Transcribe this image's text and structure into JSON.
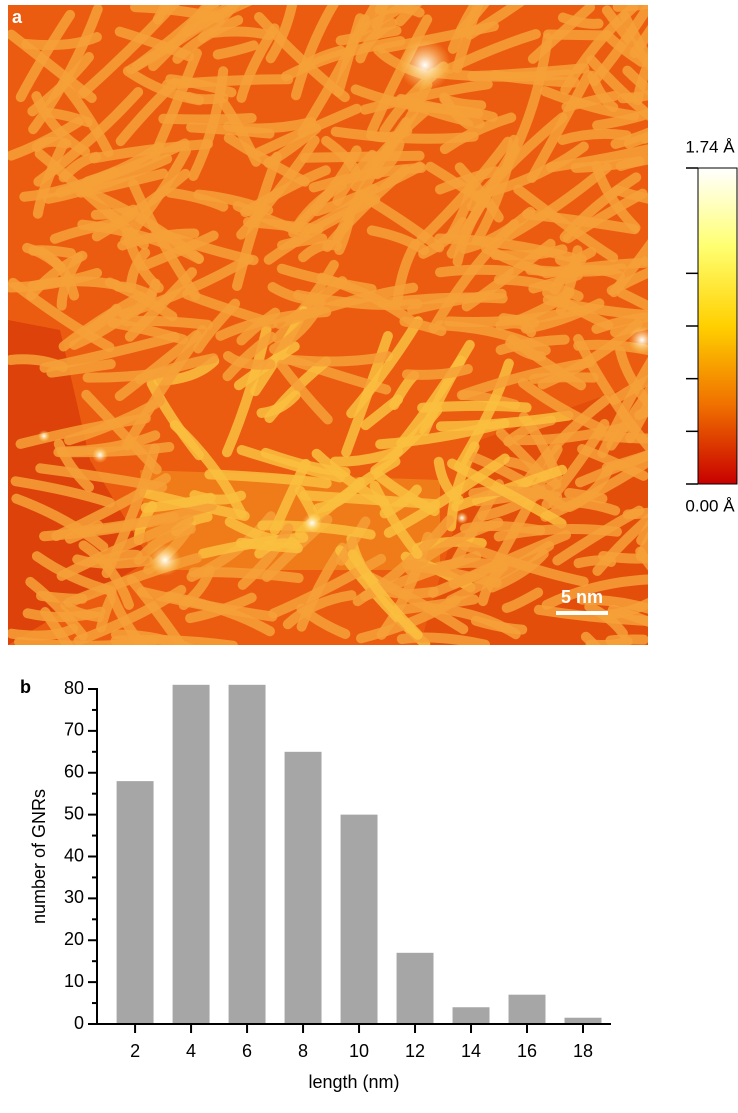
{
  "chart_data": [
    {
      "type": "image",
      "panel_label": "a",
      "scale_bar": "5 nm",
      "colorbar": {
        "clim": [
          0,
          1.74
        ],
        "ticks": [
          {
            "value": 0,
            "label": "0.00 Å"
          },
          {
            "value": 1.74,
            "label": "1.74 Å"
          }
        ],
        "minor_ticks": [
          0.29,
          0.58,
          0.87,
          1.16
        ],
        "colors": [
          "#c80000",
          "#f07000",
          "#ffd000",
          "#ffff70",
          "#ffffff"
        ]
      }
    },
    {
      "type": "bar",
      "panel_label": "b",
      "x": [
        2,
        4,
        6,
        8,
        10,
        12,
        14,
        16,
        18
      ],
      "values": [
        58,
        81,
        81,
        65,
        50,
        17,
        4,
        7,
        1.5
      ],
      "color": "#a6a6a6",
      "xlim": [
        0.64,
        19.0
      ],
      "xticks": [
        2,
        4,
        6,
        8,
        10,
        12,
        14,
        16,
        18
      ],
      "ylim": [
        0,
        80
      ],
      "yticks": [
        0,
        10,
        20,
        30,
        40,
        50,
        60,
        70,
        80
      ],
      "yminorticks": [
        5,
        15,
        25,
        35,
        45,
        55,
        65,
        75
      ],
      "xlabel": "length (nm)",
      "ylabel": "number of GNRs"
    }
  ]
}
